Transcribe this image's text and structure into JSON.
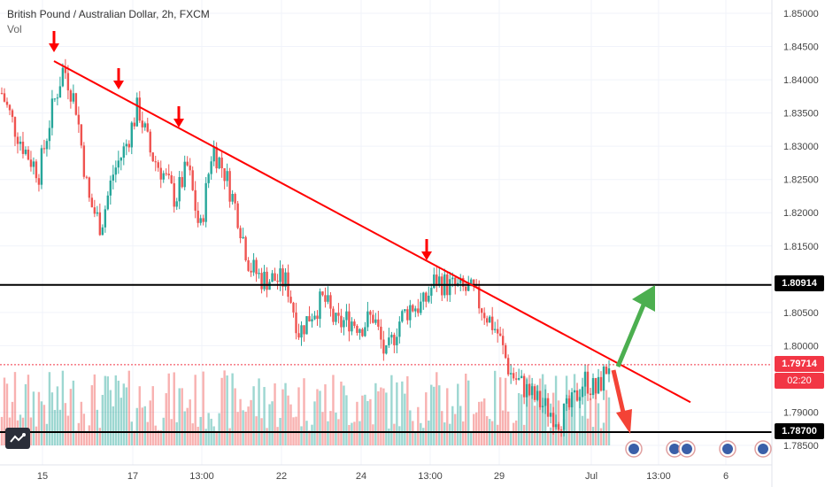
{
  "header": {
    "title": "British Pound / Australian Dollar, 2h, FXCM",
    "volume_label": "Vol"
  },
  "colors": {
    "up": "#26a69a",
    "down": "#ef5350",
    "trend": "#ff0000",
    "hline": "#000000",
    "up_arrow": "#4caf50",
    "down_arrow": "#f44336",
    "current": "#f23645"
  },
  "price_tags": {
    "resistance": "1.80914",
    "current": "1.79714",
    "countdown": "02:20",
    "support": "1.78700"
  },
  "chart_data": {
    "type": "candlestick",
    "title": "British Pound / Australian Dollar, 2h, FXCM",
    "y_ticks": [
      "1.85000",
      "1.84500",
      "1.84000",
      "1.83500",
      "1.83000",
      "1.82500",
      "1.82000",
      "1.81500",
      "1.80500",
      "1.80000",
      "1.79000",
      "1.78500"
    ],
    "ylim": [
      1.7835,
      1.8515
    ],
    "x_ticks": [
      "15",
      "17",
      "13:00",
      "22",
      "24",
      "13:00",
      "29",
      "Jul",
      "13:00",
      "6"
    ],
    "horizontal_lines": [
      1.80914,
      1.787
    ],
    "current_price": 1.79714,
    "trendline": {
      "from": [
        1.8428
      ],
      "to": [
        1.7915
      ]
    },
    "close_path": [
      1.838,
      1.833,
      1.829,
      1.826,
      1.835,
      1.842,
      1.836,
      1.822,
      1.818,
      1.826,
      1.83,
      1.836,
      1.829,
      1.826,
      1.822,
      1.827,
      1.817,
      1.83,
      1.826,
      1.82,
      1.812,
      1.81,
      1.81,
      1.8095,
      1.802,
      1.805,
      1.807,
      1.803,
      1.804,
      1.803,
      1.8045,
      1.798,
      1.8035,
      1.806,
      1.806,
      1.81,
      1.809,
      1.8085,
      1.808,
      1.805,
      1.802,
      1.796,
      1.794,
      1.792,
      1.7905,
      1.789,
      1.791,
      1.795,
      1.793,
      1.7975
    ],
    "grid": true
  }
}
